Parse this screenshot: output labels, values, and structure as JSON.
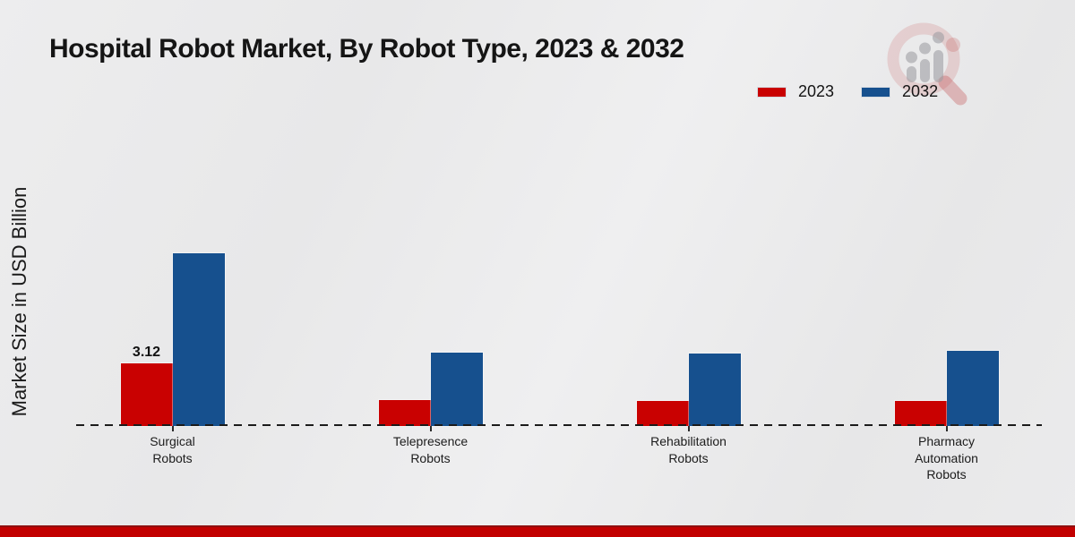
{
  "title": "Hospital Robot Market, By Robot Type, 2023 & 2032",
  "y_axis_label": "Market Size in USD Billion",
  "legend": [
    {
      "label": "2023",
      "color": "#c90101"
    },
    {
      "label": "2032",
      "color": "#16508e"
    }
  ],
  "chart_data": {
    "type": "bar",
    "title": "Hospital Robot Market, By Robot Type, 2023 & 2032",
    "xlabel": "",
    "ylabel": "Market Size in USD Billion",
    "categories": [
      "Surgical Robots",
      "Telepresence Robots",
      "Rehabilitation Robots",
      "Pharmacy Automation Robots"
    ],
    "category_lines": [
      [
        "Surgical",
        "Robots"
      ],
      [
        "Telepresence",
        "Robots"
      ],
      [
        "Rehabilitation",
        "Robots"
      ],
      [
        "Pharmacy",
        "Automation",
        "Robots"
      ]
    ],
    "series": [
      {
        "name": "2023",
        "color": "#c90101",
        "values": [
          3.12,
          1.3,
          1.25,
          1.25
        ]
      },
      {
        "name": "2032",
        "color": "#16508e",
        "values": [
          8.6,
          3.65,
          3.6,
          3.75
        ]
      }
    ],
    "value_labels": [
      {
        "series": "2023",
        "category": "Surgical Robots",
        "text": "3.12"
      }
    ],
    "ylim": [
      0,
      9.5
    ],
    "grid": false,
    "legend_position": "top-right",
    "baseline_style": "dashed",
    "y_axis_ticks_visible": false
  },
  "watermark_icon": "market-research-future-logo",
  "colors": {
    "background": "#eaeaeb",
    "footer_bar": "#c20000",
    "footer_bar_edge": "#8f1010",
    "axis_line": "#1b1b1b",
    "text": "#1a1a1a",
    "series_2023": "#c90101",
    "series_2032": "#16508e"
  }
}
